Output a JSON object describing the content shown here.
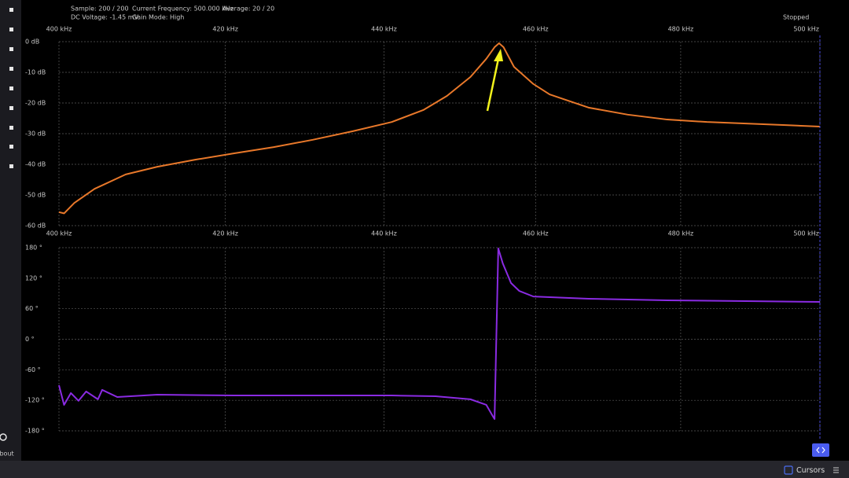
{
  "header": {
    "sample": "Sample: 200 / 200",
    "current_frequency": "Current Frequency: 500.000 kHz",
    "average": "Average: 20 / 20",
    "dc_voltage": "DC Voltage: -1.45 mV",
    "gain_mode": "Gain Mode: High",
    "status": "Stopped"
  },
  "sidebar": {
    "about": "About"
  },
  "footer": {
    "cursors": "Cursors"
  },
  "chart_data": [
    {
      "type": "line",
      "xscale": "log",
      "grid": true,
      "color": "#e8782a",
      "xlim": [
        400,
        500
      ],
      "xticks": [
        {
          "value": 400,
          "label": "400 kHz"
        },
        {
          "value": 420,
          "label": "420 kHz"
        },
        {
          "value": 440,
          "label": "440 kHz"
        },
        {
          "value": 460,
          "label": "460 kHz"
        },
        {
          "value": 480,
          "label": "480 kHz"
        },
        {
          "value": 500,
          "label": "500 kHz"
        }
      ],
      "ylim": [
        -60,
        0
      ],
      "yticks": [
        {
          "value": 0,
          "label": "0 dB"
        },
        {
          "value": -10,
          "label": "-10 dB"
        },
        {
          "value": -20,
          "label": "-20 dB"
        },
        {
          "value": -30,
          "label": "-30 dB"
        },
        {
          "value": -40,
          "label": "-40 dB"
        },
        {
          "value": -50,
          "label": "-50 dB"
        },
        {
          "value": -60,
          "label": "-60 dB"
        }
      ],
      "x": [
        400,
        400.6,
        401.8,
        404.2,
        407.9,
        411.7,
        416.3,
        421.1,
        426.0,
        430.9,
        436.0,
        441.0,
        445.1,
        448.2,
        451.3,
        453.4,
        454.5,
        455.1,
        455.7,
        457.1,
        459.7,
        461.9,
        467.2,
        472.6,
        478.1,
        483.7,
        489.3,
        495.0,
        500
      ],
      "values": [
        -55.6,
        -56,
        -52.6,
        -48,
        -43.3,
        -40.8,
        -38.5,
        -36.4,
        -34.4,
        -32,
        -29.2,
        -26.2,
        -22.3,
        -17.7,
        -11.5,
        -5.6,
        -1.8,
        -0.5,
        -1.8,
        -8.2,
        -13.8,
        -17.2,
        -21.5,
        -23.8,
        -25.4,
        -26.2,
        -26.7,
        -27.2,
        -27.7
      ]
    },
    {
      "type": "line",
      "xscale": "log",
      "grid": true,
      "color": "#8a2be2",
      "xlim": [
        400,
        500
      ],
      "xticks": [
        {
          "value": 400,
          "label": "400 kHz"
        },
        {
          "value": 420,
          "label": "420 kHz"
        },
        {
          "value": 440,
          "label": "440 kHz"
        },
        {
          "value": 460,
          "label": "460 kHz"
        },
        {
          "value": 480,
          "label": "480 kHz"
        },
        {
          "value": 500,
          "label": "500 kHz"
        }
      ],
      "ylim": [
        -180,
        180
      ],
      "yticks": [
        {
          "value": 180,
          "label": "180 °"
        },
        {
          "value": 120,
          "label": "120 °"
        },
        {
          "value": 60,
          "label": "60 °"
        },
        {
          "value": 0,
          "label": "0 °"
        },
        {
          "value": -60,
          "label": "-60 °"
        },
        {
          "value": -120,
          "label": "-120 °"
        },
        {
          "value": -180,
          "label": "-180 °"
        }
      ],
      "x": [
        400,
        400.6,
        401.4,
        402.3,
        403.2,
        404.6,
        405.1,
        406.9,
        411.7,
        421.1,
        430.9,
        441.0,
        446.7,
        451.3,
        453.4,
        454.3,
        454.5,
        455.0,
        455.6,
        456.7,
        457.8,
        459.7,
        467.2,
        478.1,
        489.3,
        500
      ],
      "values": [
        -90.4,
        -129,
        -105.8,
        -121,
        -102.7,
        -118,
        -99.6,
        -113.6,
        -109,
        -110.5,
        -110.5,
        -110.5,
        -112,
        -118,
        -129,
        -152,
        -156.8,
        178.5,
        149,
        110.5,
        95,
        84,
        79.6,
        76.5,
        75,
        73.4
      ]
    }
  ]
}
